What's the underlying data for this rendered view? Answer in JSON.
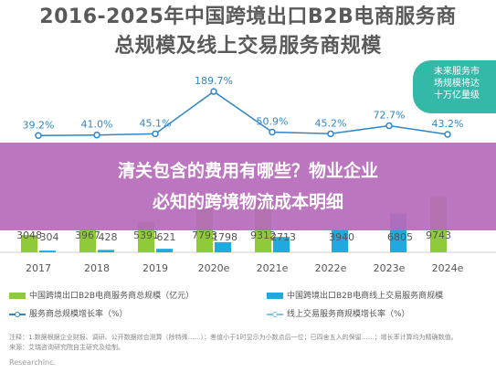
{
  "header": {
    "title_line1": "2016-2025年中国跨境出口B2B电商服务商",
    "title_line2": "总规模及线上交易服务商规模"
  },
  "callout": {
    "line1": "未来服务市",
    "line2": "场规模将达",
    "line3": "十万亿量级"
  },
  "banner": {
    "line1": "清关包含的费用有哪些？物业企业",
    "line2": "必知的跨境物流成本明细"
  },
  "legend": {
    "item1": "中国跨境出口B2B电商服务商总规模（亿元）",
    "item2": "中国跨境出口B2B电商线上交易服务商规模",
    "item3": "服务商总规模增长率（%）",
    "item4": "线上交易服务商规模增长率（%）"
  },
  "footer": {
    "note": "注释：1.数据根据企业财报、调研、公开数据综合测算（除特殊……）；差值小于1时显示为小数点后一位；已四舍五入的保留……；增长率计算均为精确数值。",
    "source": "来源：艾瑞咨询研究院自主研究及绘制。",
    "bottom": "ResearchInc."
  },
  "colors": {
    "total_bar": "#8fca3a",
    "online_bar": "#1eaadf",
    "total_growth_line": "#2f86c8",
    "online_growth_line": "#7ec0ea",
    "callout": "#34b8a8",
    "banner": "#b76aba"
  },
  "chart_data": {
    "type": "bar",
    "categories": [
      "2017",
      "2018",
      "2019",
      "2020e",
      "2021e",
      "2022e",
      "2023e",
      "2024e"
    ],
    "series": [
      {
        "name": "中国跨境出口B2B电商服务商总规模（亿元）",
        "values": [
          3048,
          3967,
          5391,
          7793,
          9312,
          null,
          null,
          9743
        ]
      },
      {
        "name": "中国跨境出口B2B电商线上交易服务商规模",
        "values": [
          304,
          428,
          621,
          1798,
          2713,
          3940,
          6805,
          null
        ]
      },
      {
        "name": "服务商总规模增长率（%）",
        "values": [
          39.2,
          41.0,
          45.1,
          189.7,
          50.9,
          45.2,
          72.7,
          43.2
        ]
      }
    ],
    "value_labels": {
      "total": [
        "3048",
        "3967",
        "5391",
        "7793",
        "9312",
        "",
        "",
        "9743"
      ],
      "online": [
        "304",
        "428",
        "621",
        "1798",
        "2713",
        "3940",
        "6805",
        ""
      ],
      "growth": [
        "39.2%",
        "41.0%",
        "45.1%",
        "189.7%",
        "50.9%",
        "45.2%",
        "72.7%",
        "43.2%"
      ]
    },
    "title": "2016-2025年中国跨境出口B2B电商服务商总规模及线上交易服务商规模",
    "xlabel": "",
    "ylabel": ""
  }
}
